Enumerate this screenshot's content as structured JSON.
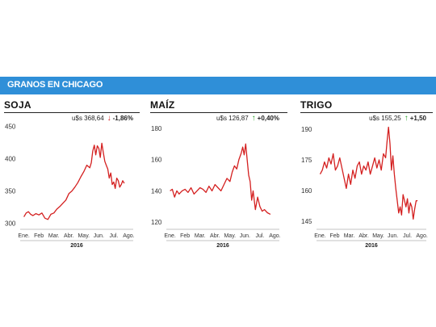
{
  "header": {
    "title": "GRANOS EN CHICAGO"
  },
  "colors": {
    "banner": "#2f8fd8",
    "line": "#d42020",
    "down": "#d42020",
    "up": "#2aa32a"
  },
  "chart_data": [
    {
      "type": "line",
      "title": "SOJA",
      "price_label": "u$s 368,64",
      "change": "-1,86%",
      "direction": "down",
      "ylim": [
        297,
        452
      ],
      "yticks": [
        300,
        350,
        400,
        450
      ],
      "xticks": [
        "Ene.",
        "Feb",
        "Mar.",
        "Abr.",
        "May.",
        "Jun.",
        "Jul.",
        "Ago."
      ],
      "year_label": "2016",
      "x": [
        0,
        0.15,
        0.3,
        0.45,
        0.6,
        0.8,
        1,
        1.2,
        1.4,
        1.6,
        1.8,
        2,
        2.2,
        2.4,
        2.6,
        2.8,
        3,
        3.2,
        3.4,
        3.6,
        3.8,
        4,
        4.2,
        4.4,
        4.5,
        4.6,
        4.7,
        4.8,
        4.9,
        5,
        5.1,
        5.2,
        5.3,
        5.4,
        5.5,
        5.6,
        5.7,
        5.8,
        5.9,
        6,
        6.1,
        6.2,
        6.3,
        6.4,
        6.5,
        6.6,
        6.7
      ],
      "y": [
        310,
        316,
        318,
        314,
        312,
        315,
        313,
        316,
        308,
        306,
        314,
        316,
        322,
        326,
        331,
        336,
        346,
        350,
        356,
        363,
        372,
        380,
        390,
        386,
        394,
        412,
        421,
        406,
        420,
        416,
        402,
        424,
        410,
        396,
        390,
        384,
        370,
        378,
        360,
        364,
        354,
        370,
        366,
        356,
        360,
        366,
        362
      ]
    },
    {
      "type": "line",
      "title": "MAÍZ",
      "price_label": "u$s 126,87",
      "change": "+0,40%",
      "direction": "up",
      "ylim": [
        118,
        182
      ],
      "yticks": [
        120,
        140,
        160,
        180
      ],
      "xticks": [
        "Ene.",
        "Feb",
        "Mar.",
        "Abr.",
        "May.",
        "Jun.",
        "Jul.",
        "Ago."
      ],
      "year_label": "2016",
      "x": [
        0,
        0.15,
        0.3,
        0.45,
        0.6,
        0.8,
        1,
        1.2,
        1.4,
        1.6,
        1.8,
        2,
        2.2,
        2.4,
        2.6,
        2.8,
        3,
        3.2,
        3.4,
        3.6,
        3.8,
        4,
        4.15,
        4.3,
        4.45,
        4.6,
        4.75,
        4.85,
        4.95,
        5.05,
        5.15,
        5.25,
        5.35,
        5.45,
        5.55,
        5.7,
        5.85,
        6,
        6.15,
        6.3,
        6.5,
        6.7
      ],
      "y": [
        140,
        141,
        136,
        140,
        138,
        140,
        141,
        139,
        142,
        138,
        140,
        142,
        141,
        139,
        143,
        140,
        144,
        142,
        140,
        144,
        148,
        146,
        152,
        156,
        154,
        160,
        164,
        168,
        163,
        170,
        160,
        150,
        146,
        134,
        140,
        128,
        136,
        130,
        127,
        128,
        126,
        125
      ]
    },
    {
      "type": "line",
      "title": "TRIGO",
      "price_label": "u$s 155,25",
      "change": "+1,50",
      "direction": "up",
      "ylim": [
        143,
        192
      ],
      "yticks": [
        145,
        160,
        175,
        190
      ],
      "xticks": [
        "Ene.",
        "Feb",
        "Mar.",
        "Abr.",
        "May.",
        "Jun.",
        "Jul.",
        "Ago."
      ],
      "year_label": "2016",
      "x": [
        0,
        0.15,
        0.3,
        0.45,
        0.6,
        0.75,
        0.9,
        1.05,
        1.2,
        1.35,
        1.5,
        1.65,
        1.8,
        1.95,
        2.1,
        2.25,
        2.4,
        2.55,
        2.7,
        2.85,
        3,
        3.15,
        3.3,
        3.45,
        3.6,
        3.75,
        3.9,
        4.05,
        4.2,
        4.35,
        4.5,
        4.6,
        4.7,
        4.8,
        4.9,
        5,
        5.1,
        5.2,
        5.3,
        5.4,
        5.5,
        5.6,
        5.7,
        5.8,
        5.9,
        6,
        6.1,
        6.2,
        6.3,
        6.4,
        6.5,
        6.6,
        6.7
      ],
      "y": [
        168,
        170,
        174,
        171,
        176,
        173,
        178,
        170,
        172,
        176,
        171,
        166,
        161,
        168,
        163,
        170,
        166,
        172,
        174,
        168,
        172,
        170,
        174,
        168,
        172,
        176,
        171,
        175,
        170,
        178,
        176,
        184,
        191,
        183,
        170,
        177,
        168,
        161,
        155,
        149,
        152,
        148,
        158,
        155,
        152,
        156,
        149,
        154,
        152,
        146,
        151,
        155,
        155
      ]
    }
  ]
}
